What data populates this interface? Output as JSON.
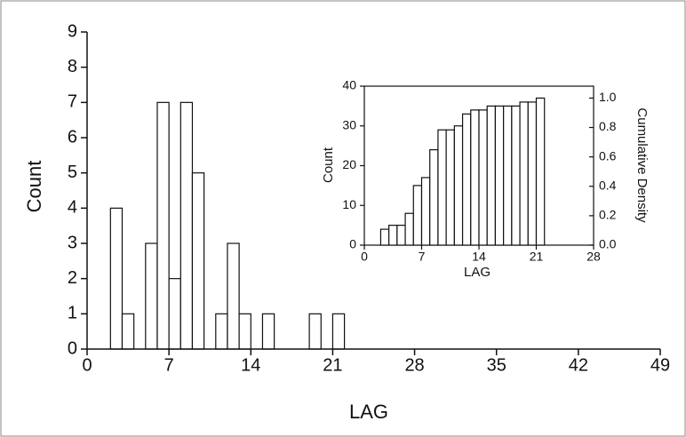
{
  "chart_data": [
    {
      "type": "histogram",
      "xlabel": "LAG",
      "ylabel": "Count",
      "bins": [
        2,
        3,
        4,
        5,
        6,
        7,
        8,
        9,
        10,
        11,
        12,
        13,
        14,
        15,
        16,
        17,
        18,
        19,
        20,
        21,
        22
      ],
      "values": [
        4,
        1,
        0,
        3,
        7,
        2,
        7,
        5,
        0,
        1,
        3,
        1,
        0,
        1,
        0,
        0,
        0,
        1,
        0,
        1
      ],
      "xlim": [
        0,
        49
      ],
      "xticks": [
        0,
        7,
        14,
        21,
        28,
        35,
        42,
        49
      ],
      "ylim": [
        0,
        9
      ],
      "yticks": [
        0,
        1,
        2,
        3,
        4,
        5,
        6,
        7,
        8,
        9
      ],
      "color": "#ffffff"
    },
    {
      "type": "histogram",
      "xlabel": "LAG",
      "ylabel": "Count",
      "y2label": "Cumulative Density",
      "bins": [
        2,
        3,
        4,
        5,
        6,
        7,
        8,
        9,
        10,
        11,
        12,
        13,
        14,
        15,
        16,
        17,
        18,
        19,
        20,
        21,
        22
      ],
      "values": [
        4,
        5,
        5,
        8,
        15,
        17,
        24,
        29,
        29,
        30,
        33,
        34,
        34,
        35,
        35,
        35,
        35,
        36,
        36,
        37
      ],
      "xlim": [
        0,
        28
      ],
      "xticks": [
        0,
        7,
        14,
        21,
        28
      ],
      "ylim": [
        0,
        40
      ],
      "yticks": [
        0,
        10,
        20,
        30,
        40
      ],
      "y2lim": [
        0,
        1.081
      ],
      "y2ticks": [
        {
          "value": 0,
          "label": "0.0"
        },
        {
          "value": 0.2,
          "label": "0.2"
        },
        {
          "value": 0.4,
          "label": "0.4"
        },
        {
          "value": 0.6,
          "label": "0.6"
        },
        {
          "value": 0.8,
          "label": "0.8"
        },
        {
          "value": 1,
          "label": "1.0"
        }
      ],
      "color": "#ffffff"
    }
  ]
}
